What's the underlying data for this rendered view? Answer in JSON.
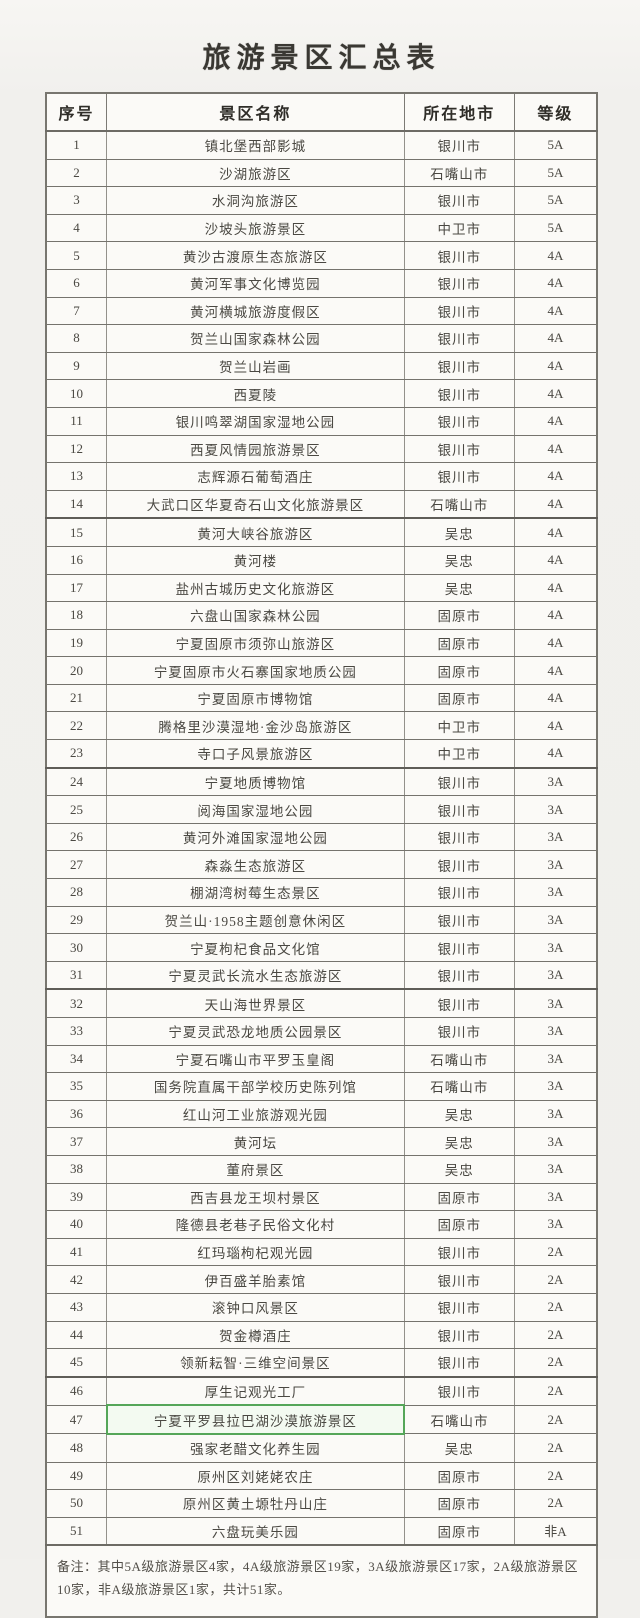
{
  "page": {
    "title": "旅游景区汇总表"
  },
  "table": {
    "columns": [
      "序号",
      "景区名称",
      "所在地市",
      "等级"
    ],
    "note": "备注：其中5A级旅游景区4家，4A级旅游景区19家，3A级旅游景区17家，2A级旅游景区10家，非A级旅游景区1家，共计51家。",
    "highlight": {
      "row_no": 47,
      "border_color": "#55a659",
      "fill_color": "#f3faf1"
    },
    "seam_rows": [
      15,
      24,
      32,
      46
    ],
    "rows": [
      {
        "no": "1",
        "name": "镇北堡西部影城",
        "city": "银川市",
        "grade": "5A"
      },
      {
        "no": "2",
        "name": "沙湖旅游区",
        "city": "石嘴山市",
        "grade": "5A"
      },
      {
        "no": "3",
        "name": "水洞沟旅游区",
        "city": "银川市",
        "grade": "5A"
      },
      {
        "no": "4",
        "name": "沙坡头旅游景区",
        "city": "中卫市",
        "grade": "5A"
      },
      {
        "no": "5",
        "name": "黄沙古渡原生态旅游区",
        "city": "银川市",
        "grade": "4A"
      },
      {
        "no": "6",
        "name": "黄河军事文化博览园",
        "city": "银川市",
        "grade": "4A"
      },
      {
        "no": "7",
        "name": "黄河横城旅游度假区",
        "city": "银川市",
        "grade": "4A"
      },
      {
        "no": "8",
        "name": "贺兰山国家森林公园",
        "city": "银川市",
        "grade": "4A"
      },
      {
        "no": "9",
        "name": "贺兰山岩画",
        "city": "银川市",
        "grade": "4A"
      },
      {
        "no": "10",
        "name": "西夏陵",
        "city": "银川市",
        "grade": "4A"
      },
      {
        "no": "11",
        "name": "银川鸣翠湖国家湿地公园",
        "city": "银川市",
        "grade": "4A"
      },
      {
        "no": "12",
        "name": "西夏风情园旅游景区",
        "city": "银川市",
        "grade": "4A"
      },
      {
        "no": "13",
        "name": "志辉源石葡萄酒庄",
        "city": "银川市",
        "grade": "4A"
      },
      {
        "no": "14",
        "name": "大武口区华夏奇石山文化旅游景区",
        "city": "石嘴山市",
        "grade": "4A"
      },
      {
        "no": "15",
        "name": "黄河大峡谷旅游区",
        "city": "吴忠",
        "grade": "4A"
      },
      {
        "no": "16",
        "name": "黄河楼",
        "city": "吴忠",
        "grade": "4A"
      },
      {
        "no": "17",
        "name": "盐州古城历史文化旅游区",
        "city": "吴忠",
        "grade": "4A"
      },
      {
        "no": "18",
        "name": "六盘山国家森林公园",
        "city": "固原市",
        "grade": "4A"
      },
      {
        "no": "19",
        "name": "宁夏固原市须弥山旅游区",
        "city": "固原市",
        "grade": "4A"
      },
      {
        "no": "20",
        "name": "宁夏固原市火石寨国家地质公园",
        "city": "固原市",
        "grade": "4A"
      },
      {
        "no": "21",
        "name": "宁夏固原市博物馆",
        "city": "固原市",
        "grade": "4A"
      },
      {
        "no": "22",
        "name": "腾格里沙漠湿地·金沙岛旅游区",
        "city": "中卫市",
        "grade": "4A"
      },
      {
        "no": "23",
        "name": "寺口子风景旅游区",
        "city": "中卫市",
        "grade": "4A"
      },
      {
        "no": "24",
        "name": "宁夏地质博物馆",
        "city": "银川市",
        "grade": "3A"
      },
      {
        "no": "25",
        "name": "阅海国家湿地公园",
        "city": "银川市",
        "grade": "3A"
      },
      {
        "no": "26",
        "name": "黄河外滩国家湿地公园",
        "city": "银川市",
        "grade": "3A"
      },
      {
        "no": "27",
        "name": "森淼生态旅游区",
        "city": "银川市",
        "grade": "3A"
      },
      {
        "no": "28",
        "name": "棚湖湾树莓生态景区",
        "city": "银川市",
        "grade": "3A"
      },
      {
        "no": "29",
        "name": "贺兰山·1958主题创意休闲区",
        "city": "银川市",
        "grade": "3A"
      },
      {
        "no": "30",
        "name": "宁夏枸杞食品文化馆",
        "city": "银川市",
        "grade": "3A"
      },
      {
        "no": "31",
        "name": "宁夏灵武长流水生态旅游区",
        "city": "银川市",
        "grade": "3A"
      },
      {
        "no": "32",
        "name": "天山海世界景区",
        "city": "银川市",
        "grade": "3A"
      },
      {
        "no": "33",
        "name": "宁夏灵武恐龙地质公园景区",
        "city": "银川市",
        "grade": "3A"
      },
      {
        "no": "34",
        "name": "宁夏石嘴山市平罗玉皇阁",
        "city": "石嘴山市",
        "grade": "3A"
      },
      {
        "no": "35",
        "name": "国务院直属干部学校历史陈列馆",
        "city": "石嘴山市",
        "grade": "3A"
      },
      {
        "no": "36",
        "name": "红山河工业旅游观光园",
        "city": "吴忠",
        "grade": "3A"
      },
      {
        "no": "37",
        "name": "黄河坛",
        "city": "吴忠",
        "grade": "3A"
      },
      {
        "no": "38",
        "name": "董府景区",
        "city": "吴忠",
        "grade": "3A"
      },
      {
        "no": "39",
        "name": "西吉县龙王坝村景区",
        "city": "固原市",
        "grade": "3A"
      },
      {
        "no": "40",
        "name": "隆德县老巷子民俗文化村",
        "city": "固原市",
        "grade": "3A"
      },
      {
        "no": "41",
        "name": "红玛瑙枸杞观光园",
        "city": "银川市",
        "grade": "2A"
      },
      {
        "no": "42",
        "name": "伊百盛羊胎素馆",
        "city": "银川市",
        "grade": "2A"
      },
      {
        "no": "43",
        "name": "滚钟口风景区",
        "city": "银川市",
        "grade": "2A"
      },
      {
        "no": "44",
        "name": "贺金樽酒庄",
        "city": "银川市",
        "grade": "2A"
      },
      {
        "no": "45",
        "name": "领新耘智·三维空间景区",
        "city": "银川市",
        "grade": "2A"
      },
      {
        "no": "46",
        "name": "厚生记观光工厂",
        "city": "银川市",
        "grade": "2A"
      },
      {
        "no": "47",
        "name": "宁夏平罗县拉巴湖沙漠旅游景区",
        "city": "石嘴山市",
        "grade": "2A"
      },
      {
        "no": "48",
        "name": "强家老醋文化养生园",
        "city": "吴忠",
        "grade": "2A"
      },
      {
        "no": "49",
        "name": "原州区刘姥姥农庄",
        "city": "固原市",
        "grade": "2A"
      },
      {
        "no": "50",
        "name": "原州区黄土塬牡丹山庄",
        "city": "固原市",
        "grade": "2A"
      },
      {
        "no": "51",
        "name": "六盘玩美乐园",
        "city": "固原市",
        "grade": "非A"
      }
    ]
  }
}
